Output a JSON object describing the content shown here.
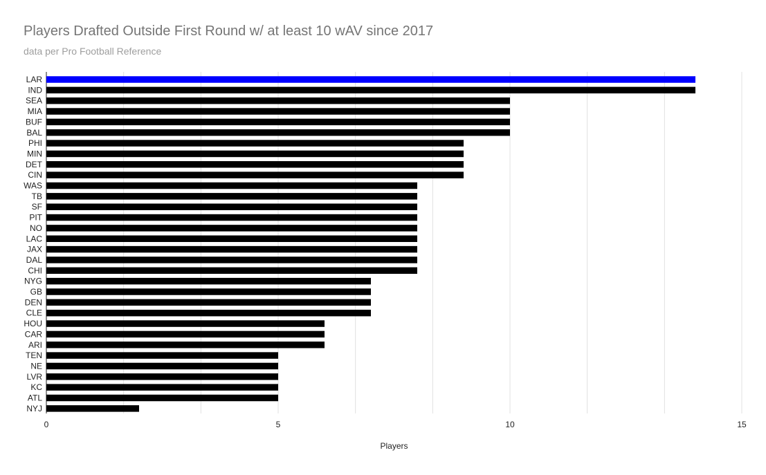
{
  "chart_data": {
    "type": "bar",
    "orientation": "horizontal",
    "title": "Players Drafted Outside First Round w/ at least 10 wAV since 2017",
    "subtitle": "data per Pro Football Reference",
    "xlabel": "Players",
    "ylabel": "",
    "xlim": [
      0,
      15
    ],
    "xticks": [
      "0",
      "5",
      "10",
      "15"
    ],
    "grid": true,
    "categories": [
      "LAR",
      "IND",
      "SEA",
      "MIA",
      "BUF",
      "BAL",
      "PHI",
      "MIN",
      "DET",
      "CIN",
      "WAS",
      "TB",
      "SF",
      "PIT",
      "NO",
      "LAC",
      "JAX",
      "DAL",
      "CHI",
      "NYG",
      "GB",
      "DEN",
      "CLE",
      "HOU",
      "CAR",
      "ARI",
      "TEN",
      "NE",
      "LVR",
      "KC",
      "ATL",
      "NYJ"
    ],
    "values": [
      14,
      14,
      10,
      10,
      10,
      10,
      9,
      9,
      9,
      9,
      8,
      8,
      8,
      8,
      8,
      8,
      8,
      8,
      8,
      7,
      7,
      7,
      7,
      6,
      6,
      6,
      5,
      5,
      5,
      5,
      5,
      2
    ],
    "highlight_category": "LAR",
    "colors": {
      "default_bar": "#000000",
      "highlight_bar": "#0000ff",
      "grid": "#e0e0e0",
      "axis": "#222222"
    }
  }
}
